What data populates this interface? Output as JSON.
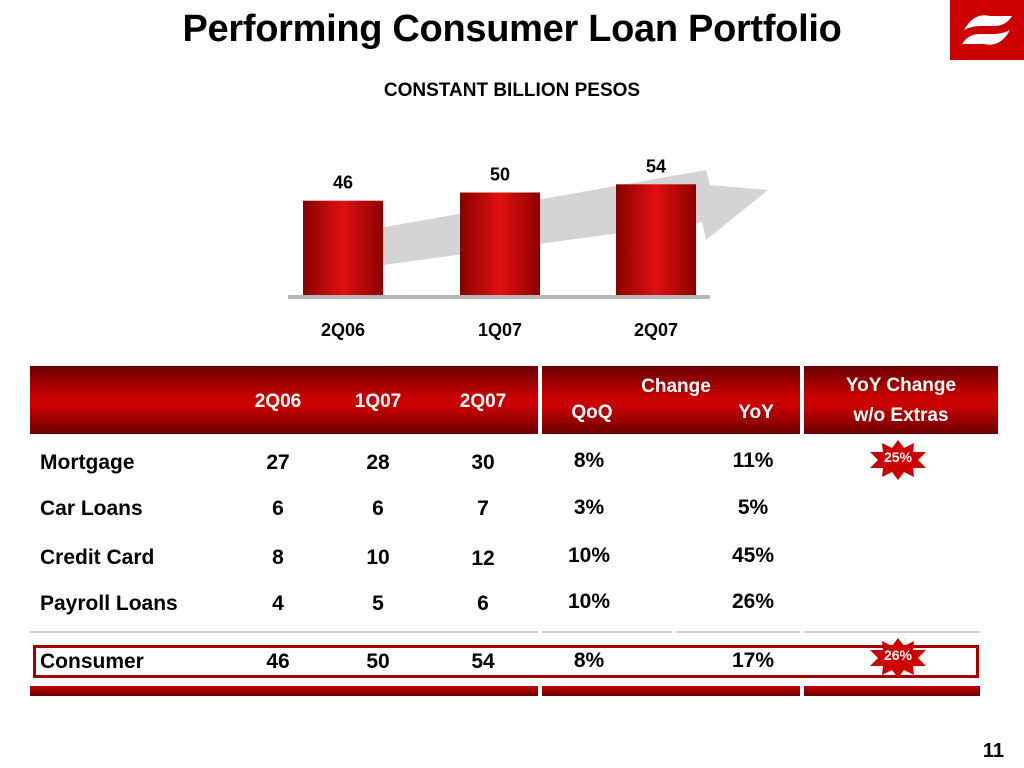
{
  "title": "Performing Consumer Loan Portfolio",
  "subtitle": "CONSTANT BILLION PESOS",
  "page_number": "11",
  "colors": {
    "accent": "#cc0000",
    "dark_red": "#7a0000",
    "arrow": "#d4d4d4"
  },
  "chart_data": {
    "type": "bar",
    "categories": [
      "2Q06",
      "1Q07",
      "2Q07"
    ],
    "values": [
      46,
      50,
      54
    ],
    "ylim": [
      0,
      60
    ]
  },
  "table": {
    "headers": {
      "c1": "2Q06",
      "c2": "1Q07",
      "c3": "2Q07",
      "change": "Change",
      "qoq": "QoQ",
      "yoy": "YoY",
      "yoy_extras_1": "YoY Change",
      "yoy_extras_2": "w/o Extras"
    },
    "rows": [
      {
        "label": "Mortgage",
        "c1": "27",
        "c2": "28",
        "c3": "30",
        "qoq": "8%",
        "yoy": "11%",
        "extras": "25%"
      },
      {
        "label": "Car Loans",
        "c1": "6",
        "c2": "6",
        "c3": "7",
        "qoq": "3%",
        "yoy": "5%",
        "extras": ""
      },
      {
        "label": "Credit Card",
        "c1": "8",
        "c2": "10",
        "c3": "12",
        "qoq": "10%",
        "yoy": "45%",
        "extras": ""
      },
      {
        "label": "Payroll Loans",
        "c1": "4",
        "c2": "5",
        "c3": "6",
        "qoq": "10%",
        "yoy": "26%",
        "extras": ""
      }
    ],
    "total": {
      "label": "Consumer",
      "c1": "46",
      "c2": "50",
      "c3": "54",
      "qoq": "8%",
      "yoy": "17%",
      "extras": "26%"
    }
  }
}
